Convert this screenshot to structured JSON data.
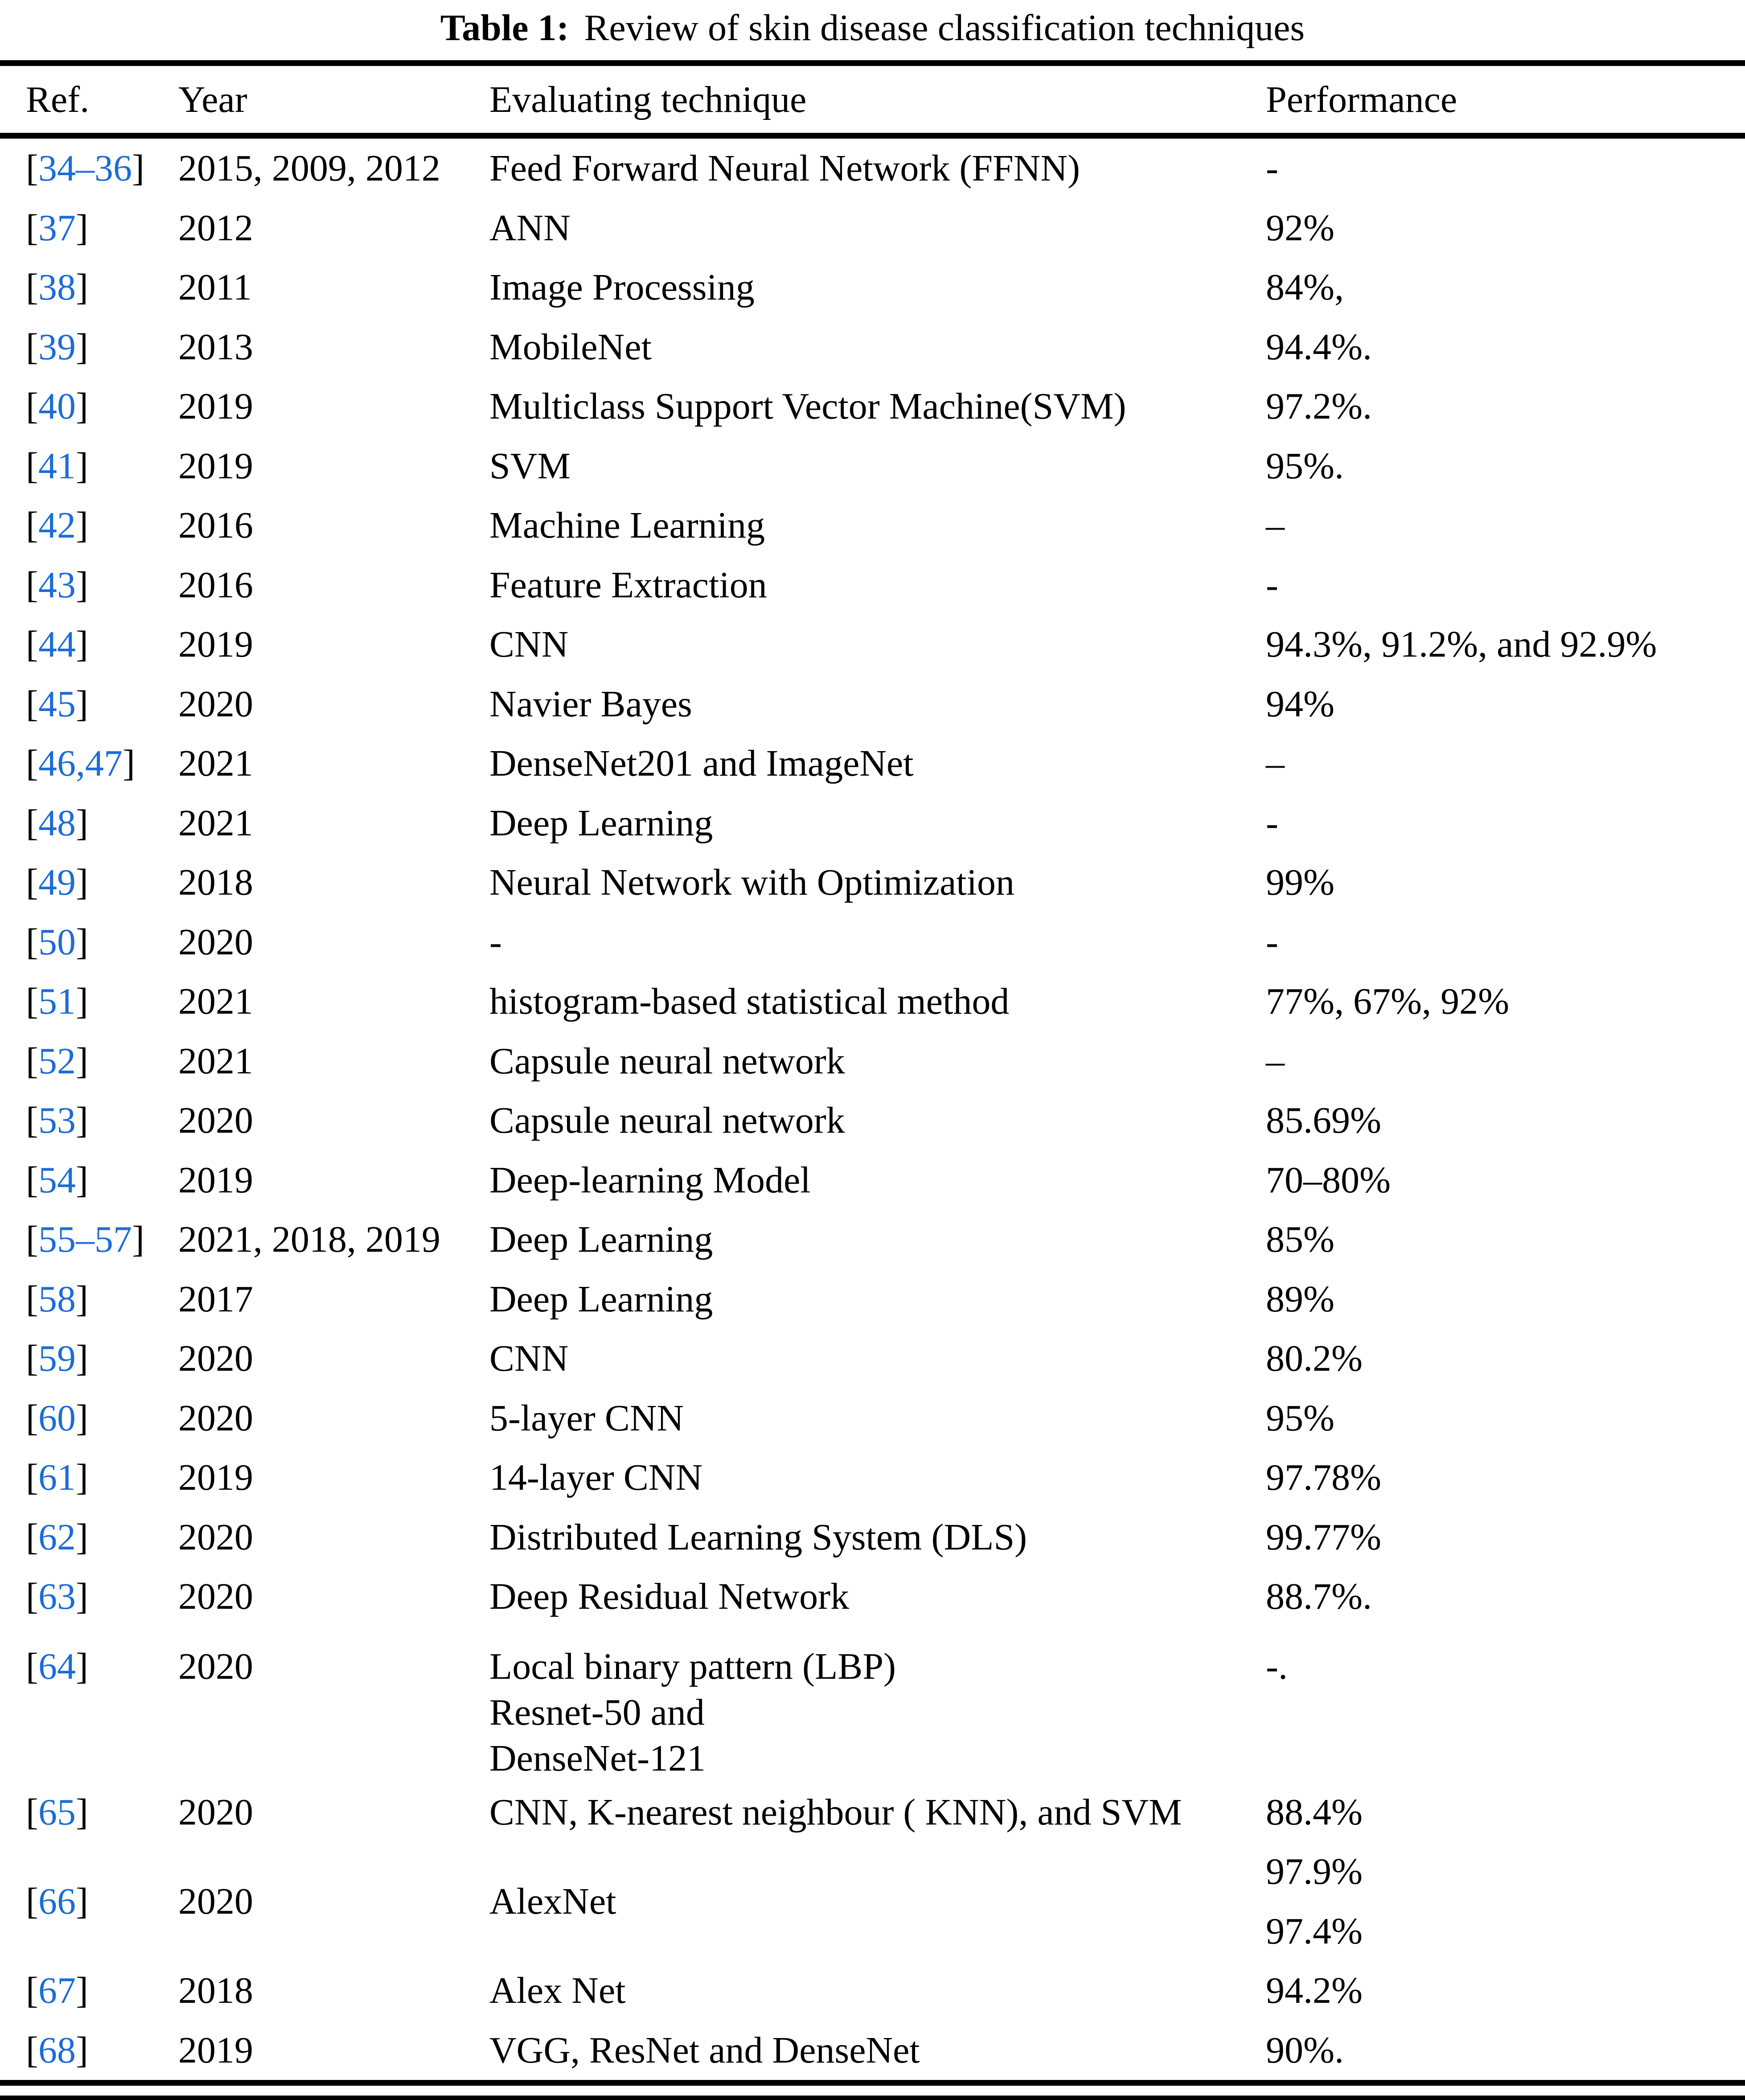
{
  "table": {
    "caption_label": "Table 1:",
    "caption_text": "Review of skin disease classification techniques",
    "columns": [
      "Ref.",
      "Year",
      "Evaluating technique",
      "Performance"
    ],
    "link_color": "#1b6cd8",
    "text_color": "#000000",
    "background_color": "#ffffff",
    "rows": [
      {
        "ref": "34–36",
        "year": "2015, 2009, 2012",
        "technique": [
          "Feed Forward Neural Network (FFNN)"
        ],
        "performance": [
          "-"
        ]
      },
      {
        "ref": "37",
        "year": "2012",
        "technique": [
          "ANN"
        ],
        "performance": [
          "92%"
        ]
      },
      {
        "ref": "38",
        "year": "2011",
        "technique": [
          "Image Processing"
        ],
        "performance": [
          "84%,"
        ]
      },
      {
        "ref": "39",
        "year": "2013",
        "technique": [
          "MobileNet"
        ],
        "performance": [
          "94.4%."
        ]
      },
      {
        "ref": "40",
        "year": "2019",
        "technique": [
          "Multiclass Support Vector Machine(SVM)"
        ],
        "performance": [
          "97.2%."
        ]
      },
      {
        "ref": "41",
        "year": "2019",
        "technique": [
          "SVM"
        ],
        "performance": [
          "95%."
        ]
      },
      {
        "ref": "42",
        "year": "2016",
        "technique": [
          "Machine Learning"
        ],
        "performance": [
          "–"
        ]
      },
      {
        "ref": "43",
        "year": "2016",
        "technique": [
          "Feature Extraction"
        ],
        "performance": [
          "-"
        ]
      },
      {
        "ref": "44",
        "year": "2019",
        "technique": [
          "CNN"
        ],
        "performance": [
          "94.3%, 91.2%, and 92.9%"
        ]
      },
      {
        "ref": "45",
        "year": "2020",
        "technique": [
          "Navier Bayes"
        ],
        "performance": [
          "94%"
        ]
      },
      {
        "ref": "46,47",
        "year": "2021",
        "technique": [
          "DenseNet201 and ImageNet"
        ],
        "performance": [
          "–"
        ]
      },
      {
        "ref": "48",
        "year": "2021",
        "technique": [
          "Deep Learning"
        ],
        "performance": [
          "-"
        ]
      },
      {
        "ref": "49",
        "year": "2018",
        "technique": [
          "Neural Network with Optimization"
        ],
        "performance": [
          "99%"
        ]
      },
      {
        "ref": "50",
        "year": "2020",
        "technique": [
          "-"
        ],
        "performance": [
          "-"
        ]
      },
      {
        "ref": "51",
        "year": "2021",
        "technique": [
          "histogram-based statistical method"
        ],
        "performance": [
          "77%, 67%, 92%"
        ]
      },
      {
        "ref": "52",
        "year": "2021",
        "technique": [
          "Capsule neural network"
        ],
        "performance": [
          "–"
        ]
      },
      {
        "ref": "53",
        "year": "2020",
        "technique": [
          "Capsule neural network"
        ],
        "performance": [
          "85.69%"
        ]
      },
      {
        "ref": "54",
        "year": "2019",
        "technique": [
          "Deep-learning Model"
        ],
        "performance": [
          "70–80%"
        ]
      },
      {
        "ref": "55–57",
        "year": "2021, 2018, 2019",
        "technique": [
          "Deep Learning"
        ],
        "performance": [
          "85%"
        ]
      },
      {
        "ref": "58",
        "year": "2017",
        "technique": [
          "Deep Learning"
        ],
        "performance": [
          "89%"
        ]
      },
      {
        "ref": "59",
        "year": "2020",
        "technique": [
          "CNN"
        ],
        "performance": [
          "80.2%"
        ]
      },
      {
        "ref": "60",
        "year": "2020",
        "technique": [
          "5-layer CNN"
        ],
        "performance": [
          "95%"
        ]
      },
      {
        "ref": "61",
        "year": "2019",
        "technique": [
          "14-layer CNN"
        ],
        "performance": [
          "97.78%"
        ]
      },
      {
        "ref": "62",
        "year": "2020",
        "technique": [
          "Distributed Learning System (DLS)"
        ],
        "performance": [
          "99.77%"
        ]
      },
      {
        "ref": "63",
        "year": "2020",
        "technique": [
          "Deep Residual Network"
        ],
        "performance": [
          "88.7%."
        ]
      },
      {
        "ref": "64",
        "year": "2020",
        "technique": [
          "Local binary pattern (LBP)",
          "Resnet-50 and",
          "DenseNet-121"
        ],
        "performance": [
          "-."
        ],
        "layout": "multiline-top"
      },
      {
        "ref": "65",
        "year": "2020",
        "technique": [
          "CNN, K-nearest neighbour ( KNN), and SVM"
        ],
        "performance": [
          "88.4%"
        ]
      },
      {
        "ref": "66",
        "year": "2020",
        "technique": [
          "AlexNet"
        ],
        "performance": [
          "97.9%",
          "97.4%"
        ],
        "layout": "tall"
      },
      {
        "ref": "67",
        "year": "2018",
        "technique": [
          "Alex Net"
        ],
        "performance": [
          "94.2%"
        ]
      },
      {
        "ref": "68",
        "year": "2019",
        "technique": [
          "VGG, ResNet and DenseNet"
        ],
        "performance": [
          "90%."
        ]
      }
    ]
  }
}
